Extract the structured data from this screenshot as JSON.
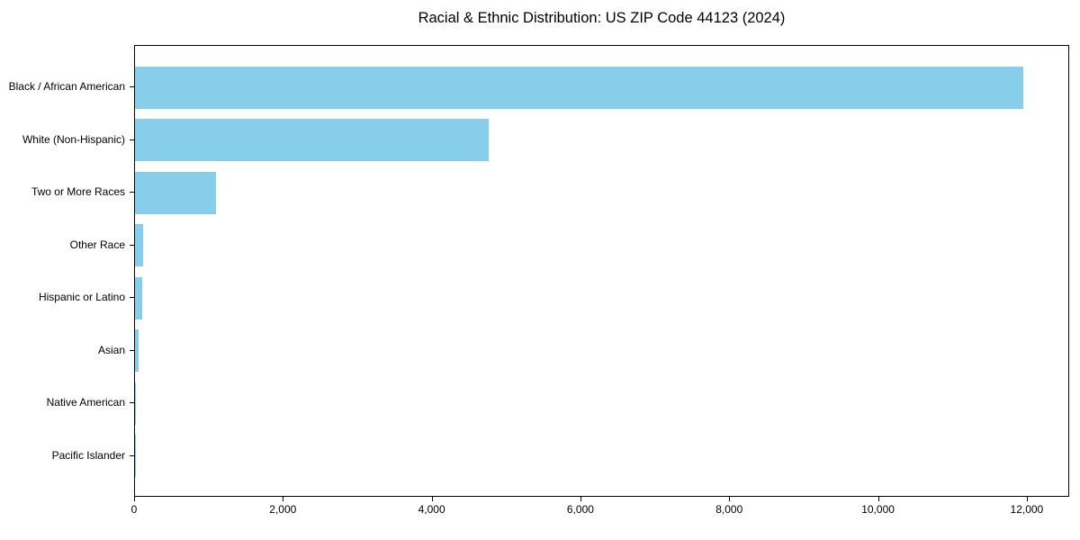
{
  "chart_data": {
    "type": "bar",
    "orientation": "horizontal",
    "title": "Racial & Ethnic Distribution: US ZIP Code 44123 (2024)",
    "categories": [
      "Black / African American",
      "White (Non-Hispanic)",
      "Two or More Races",
      "Other Race",
      "Hispanic or Latino",
      "Asian",
      "Native American",
      "Pacific Islander"
    ],
    "values": [
      11940,
      4750,
      1090,
      110,
      95,
      45,
      15,
      5
    ],
    "xlabel": "",
    "ylabel": "",
    "xlim": [
      0,
      12570
    ],
    "xticks": {
      "values": [
        0,
        2000,
        4000,
        6000,
        8000,
        10000,
        12000
      ],
      "labels": [
        "0",
        "2,000",
        "4,000",
        "6,000",
        "8,000",
        "10,000",
        "12,000"
      ]
    },
    "grid": false,
    "legend": false,
    "bar_color": "#87CEEB",
    "axis_color": "#000000",
    "text_color": "#000000",
    "background_color": "#ffffff"
  }
}
